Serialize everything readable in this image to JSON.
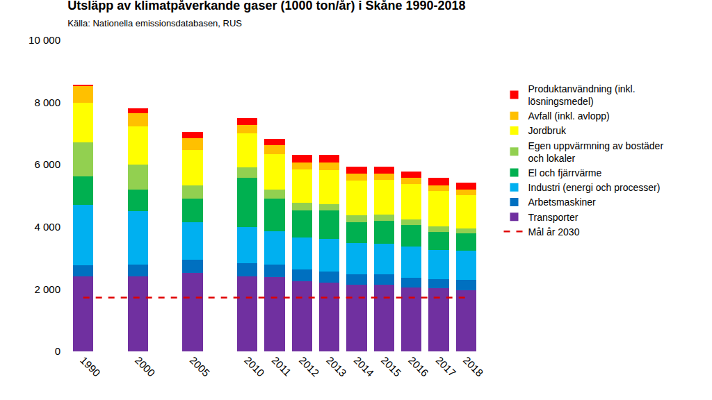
{
  "chart_data": {
    "type": "bar",
    "stacked": true,
    "title": "Utsläpp av klimatpåverkande gaser (1000 ton/år) i Skåne 1990-2018",
    "subtitle": "Källa: Nationella emissionsdatabasen, RUS",
    "categories": [
      "1990",
      null,
      "2000",
      null,
      "2005",
      null,
      "2010",
      "2011",
      "2012",
      "2013",
      "2014",
      "2015",
      "2016",
      "2017",
      "2018"
    ],
    "ylim": [
      0,
      10000
    ],
    "yticks": [
      0,
      {
        "value": 2000,
        "label": "2 000"
      },
      {
        "value": 4000,
        "label": "4 000"
      },
      {
        "value": 6000,
        "label": "6 000"
      },
      {
        "value": 8000,
        "label": "8 000"
      },
      {
        "value": 10000,
        "label": "10 000"
      }
    ],
    "grid": false,
    "legend": "right",
    "series": [
      {
        "name": "Transporter",
        "color": "#7030a0",
        "values": [
          2400,
          null,
          2420,
          null,
          2530,
          null,
          2420,
          2380,
          2250,
          2210,
          2150,
          2150,
          2060,
          2030,
          1960
        ]
      },
      {
        "name": "Arbetsmaskiner",
        "color": "#0070c0",
        "values": [
          370,
          null,
          360,
          null,
          420,
          null,
          420,
          400,
          380,
          350,
          330,
          330,
          310,
          300,
          330
        ]
      },
      {
        "name": "Industri (energi och processer)",
        "color": "#00b0f0",
        "values": [
          1950,
          null,
          1720,
          null,
          1200,
          null,
          1160,
          1080,
          1040,
          1060,
          1000,
          970,
          1010,
          920,
          940
        ]
      },
      {
        "name": "El och fjärrvärme",
        "color": "#00b050",
        "values": [
          900,
          null,
          700,
          null,
          750,
          null,
          1570,
          1060,
          860,
          910,
          670,
          750,
          680,
          600,
          560
        ]
      },
      {
        "name": "Egen uppvärmning av bostäder och lokaler",
        "color": "#92d050",
        "values": [
          1100,
          null,
          800,
          null,
          430,
          null,
          350,
          290,
          240,
          200,
          220,
          200,
          190,
          170,
          160
        ]
      },
      {
        "name": "Jordbruk",
        "color": "#ffff00",
        "values": [
          1280,
          null,
          1230,
          null,
          1150,
          null,
          1080,
          1130,
          1070,
          1100,
          1130,
          1120,
          1130,
          1130,
          1080
        ]
      },
      {
        "name": "Avfall (inkl. avlopp)",
        "color": "#ffc000",
        "values": [
          520,
          null,
          430,
          null,
          370,
          null,
          280,
          280,
          240,
          250,
          220,
          200,
          190,
          190,
          180
        ]
      },
      {
        "name": "Produktanvändning (inkl. lösningsmedel)",
        "color": "#ff0000",
        "values": [
          60,
          null,
          160,
          null,
          200,
          null,
          220,
          200,
          240,
          230,
          210,
          210,
          220,
          230,
          220
        ]
      },
      {
        "name": "Mål år 2030",
        "type": "line",
        "line_style": "dashed",
        "color": "#e00000",
        "values": [
          1730,
          1730,
          1730,
          1730,
          1730,
          1730,
          1730,
          1730,
          1730,
          1730,
          1730,
          1730,
          1730,
          1730,
          1730
        ]
      }
    ]
  }
}
